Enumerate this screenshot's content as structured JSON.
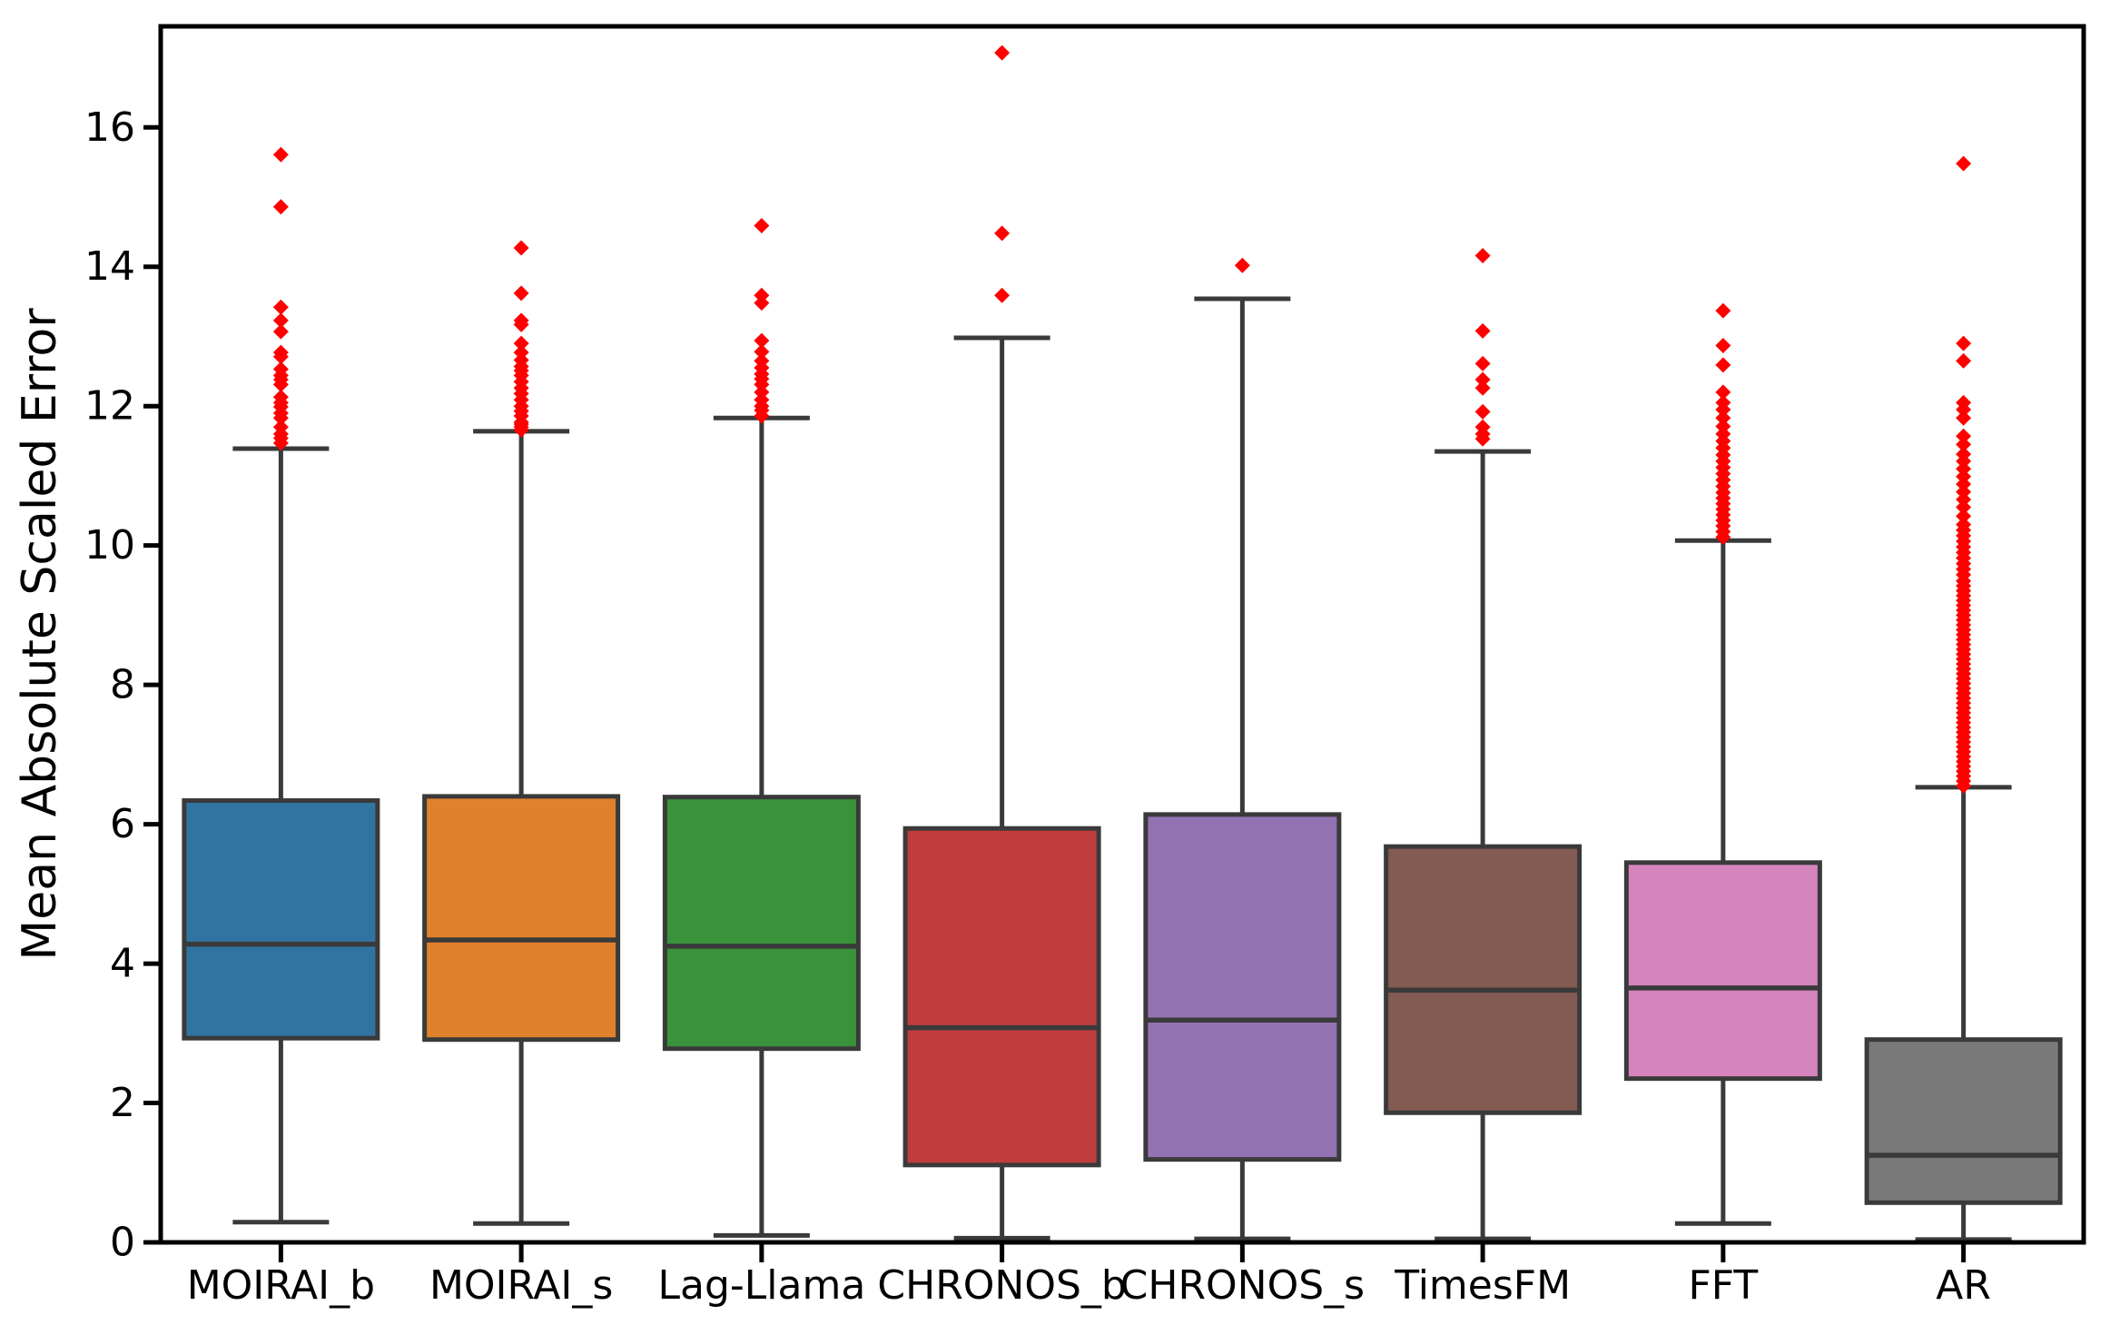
{
  "figure": {
    "background": "#ffffff"
  },
  "chart_data": {
    "type": "boxplot",
    "title": "",
    "xlabel": "",
    "ylabel": "Mean Absolute Scaled Error",
    "ylim": [
      0,
      17.45
    ],
    "yticks": [
      0,
      2,
      4,
      6,
      8,
      10,
      12,
      14,
      16
    ],
    "grid": false,
    "legend": "none",
    "spine_color": "#000000",
    "edge_color": "#3a3a3a",
    "outlier_color": "#ff0000",
    "outlier_marker": "diamond",
    "categories": [
      "MOIRAI_b",
      "MOIRAI_s",
      "Lag-Llama",
      "CHRONOS_b",
      "CHRONOS_s",
      "TimesFM",
      "FFT",
      "AR"
    ],
    "series": [
      {
        "name": "MOIRAI_b",
        "color": "#3274a1",
        "whisker_low": 0.29,
        "q1": 2.93,
        "median": 4.28,
        "q3": 6.34,
        "whisker_high": 11.39,
        "outliers": [
          11.47,
          11.54,
          11.6,
          11.7,
          11.83,
          11.9,
          11.99,
          12.05,
          12.13,
          12.31,
          12.38,
          12.44,
          12.53,
          12.71,
          12.77,
          13.07,
          13.23,
          13.42,
          14.86,
          15.61
        ]
      },
      {
        "name": "MOIRAI_s",
        "color": "#e1812c",
        "whisker_low": 0.27,
        "q1": 2.91,
        "median": 4.34,
        "q3": 6.4,
        "whisker_high": 11.64,
        "outliers": [
          11.66,
          11.7,
          11.74,
          11.77,
          11.86,
          11.93,
          12.0,
          12.09,
          12.18,
          12.26,
          12.35,
          12.44,
          12.51,
          12.57,
          12.66,
          12.77,
          12.9,
          13.17,
          13.23,
          13.62,
          14.27
        ]
      },
      {
        "name": "Lag-Llama",
        "color": "#3a923a",
        "whisker_low": 0.1,
        "q1": 2.78,
        "median": 4.25,
        "q3": 6.39,
        "whisker_high": 11.83,
        "outliers": [
          11.86,
          11.94,
          12.0,
          12.09,
          12.2,
          12.31,
          12.39,
          12.46,
          12.55,
          12.65,
          12.78,
          12.94,
          13.48,
          13.59,
          14.59
        ]
      },
      {
        "name": "CHRONOS_b",
        "color": "#c03d3e",
        "whisker_low": 0.06,
        "q1": 1.11,
        "median": 3.08,
        "q3": 5.94,
        "whisker_high": 12.98,
        "outliers": [
          13.59,
          14.48,
          17.07
        ]
      },
      {
        "name": "CHRONOS_s",
        "color": "#9372b2",
        "whisker_low": 0.05,
        "q1": 1.19,
        "median": 3.19,
        "q3": 6.14,
        "whisker_high": 13.54,
        "outliers": [
          14.02
        ]
      },
      {
        "name": "TimesFM",
        "color": "#845b53",
        "whisker_low": 0.05,
        "q1": 1.86,
        "median": 3.62,
        "q3": 5.68,
        "whisker_high": 11.35,
        "outliers": [
          11.53,
          11.6,
          11.7,
          11.92,
          12.26,
          12.38,
          12.61,
          13.08,
          14.16
        ]
      },
      {
        "name": "FFT",
        "color": "#d684bd",
        "whisker_low": 0.27,
        "q1": 2.35,
        "median": 3.65,
        "q3": 5.45,
        "whisker_high": 10.07,
        "outliers": [
          10.12,
          10.2,
          10.28,
          10.36,
          10.44,
          10.52,
          10.6,
          10.68,
          10.76,
          10.85,
          10.94,
          11.03,
          11.12,
          11.21,
          11.3,
          11.4,
          11.5,
          11.6,
          11.71,
          11.83,
          11.95,
          12.05,
          12.2,
          12.59,
          12.87,
          13.37
        ]
      },
      {
        "name": "AR",
        "color": "#797979",
        "whisker_low": 0.04,
        "q1": 0.57,
        "median": 1.25,
        "q3": 2.91,
        "whisker_high": 6.53,
        "outliers": [
          6.55,
          6.62,
          6.69,
          6.76,
          6.83,
          6.9,
          6.97,
          7.04,
          7.11,
          7.18,
          7.25,
          7.32,
          7.39,
          7.46,
          7.53,
          7.6,
          7.67,
          7.74,
          7.81,
          7.88,
          7.95,
          8.02,
          8.09,
          8.16,
          8.23,
          8.3,
          8.37,
          8.44,
          8.51,
          8.58,
          8.65,
          8.72,
          8.79,
          8.86,
          8.93,
          9.0,
          9.07,
          9.14,
          9.21,
          9.28,
          9.35,
          9.42,
          9.49,
          9.58,
          9.66,
          9.74,
          9.82,
          9.9,
          9.98,
          10.06,
          10.14,
          10.22,
          10.3,
          10.42,
          10.55,
          10.66,
          10.77,
          10.88,
          10.99,
          11.1,
          11.21,
          11.31,
          11.45,
          11.57,
          11.83,
          11.95,
          12.05,
          12.65,
          12.9,
          15.48
        ]
      }
    ]
  }
}
